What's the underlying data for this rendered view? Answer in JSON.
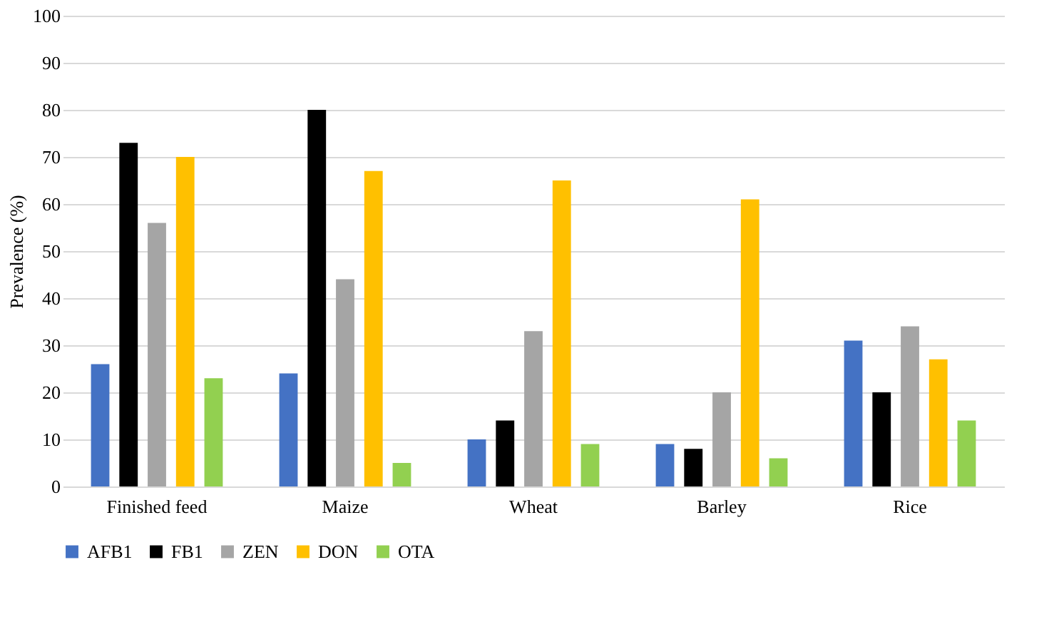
{
  "chart_data": {
    "type": "bar",
    "ylabel": "Prevalence (%)",
    "categories": [
      "Finished feed",
      "Maize",
      "Wheat",
      "Barley",
      "Rice"
    ],
    "series": [
      {
        "name": "AFB1",
        "color": "#4472c4",
        "values": [
          26,
          24,
          10,
          9,
          31
        ]
      },
      {
        "name": "FB1",
        "color": "#000000",
        "values": [
          73,
          80,
          14,
          8,
          20
        ]
      },
      {
        "name": "ZEN",
        "color": "#a5a5a5",
        "values": [
          56,
          44,
          33,
          20,
          34
        ]
      },
      {
        "name": "DON",
        "color": "#ffc000",
        "values": [
          70,
          67,
          65,
          61,
          27
        ]
      },
      {
        "name": "OTA",
        "color": "#92d050",
        "values": [
          23,
          5,
          9,
          6,
          14
        ]
      }
    ],
    "ylim": [
      0,
      100
    ],
    "yticks": [
      0,
      10,
      20,
      30,
      40,
      50,
      60,
      70,
      80,
      90,
      100
    ],
    "grid": "y",
    "legend": "bottom"
  }
}
